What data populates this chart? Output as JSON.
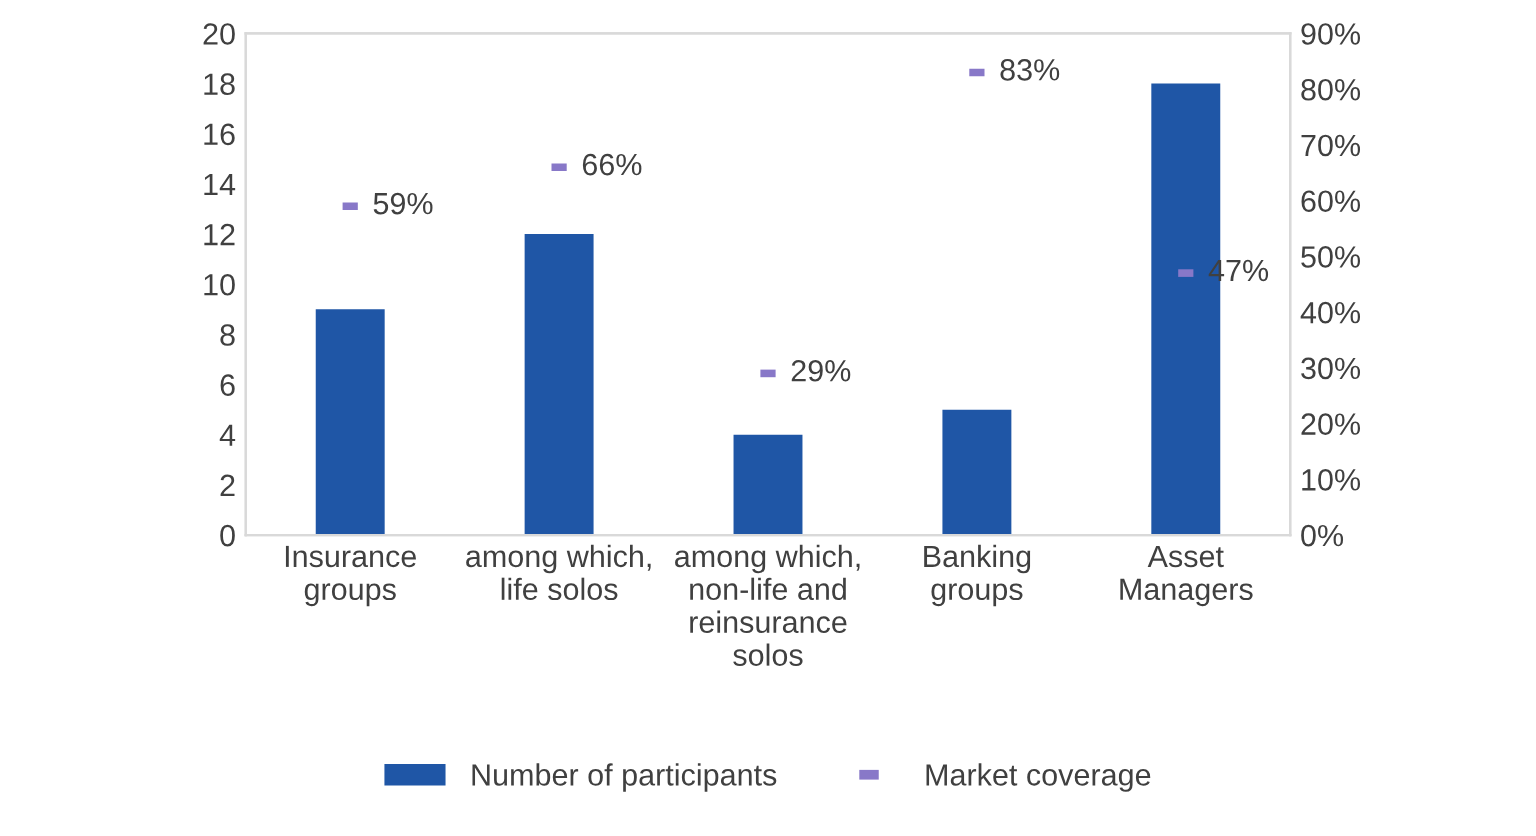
{
  "chart_data": {
    "type": "bar",
    "categories": [
      "Insurance groups",
      "among which, life solos",
      "among which, non-life and reinsurance solos",
      "Banking groups",
      "Asset Managers"
    ],
    "series": [
      {
        "name": "Number of participants",
        "color": "#1f56a6",
        "values": [
          9,
          12,
          4,
          5,
          18
        ]
      },
      {
        "name": "Market coverage",
        "type": "scatter",
        "axis": "y2",
        "color": "#8878c8",
        "values": [
          59,
          66,
          29,
          83,
          47
        ],
        "value_labels": [
          "59%",
          "66%",
          "29%",
          "83%",
          "47%"
        ]
      }
    ],
    "ylim": [
      0,
      20
    ],
    "yticks": [
      0,
      2,
      4,
      6,
      8,
      10,
      12,
      14,
      16,
      18,
      20
    ],
    "y2lim": [
      0,
      90
    ],
    "y2ticks": [
      {
        "value": 0,
        "label": "0%"
      },
      {
        "value": 10,
        "label": "10%"
      },
      {
        "value": 20,
        "label": "20%"
      },
      {
        "value": 30,
        "label": "30%"
      },
      {
        "value": 40,
        "label": "40%"
      },
      {
        "value": 50,
        "label": "50%"
      },
      {
        "value": 60,
        "label": "60%"
      },
      {
        "value": 70,
        "label": "70%"
      },
      {
        "value": 80,
        "label": "80%"
      },
      {
        "value": 90,
        "label": "90%"
      }
    ],
    "grid": false,
    "legend": "bottom"
  }
}
